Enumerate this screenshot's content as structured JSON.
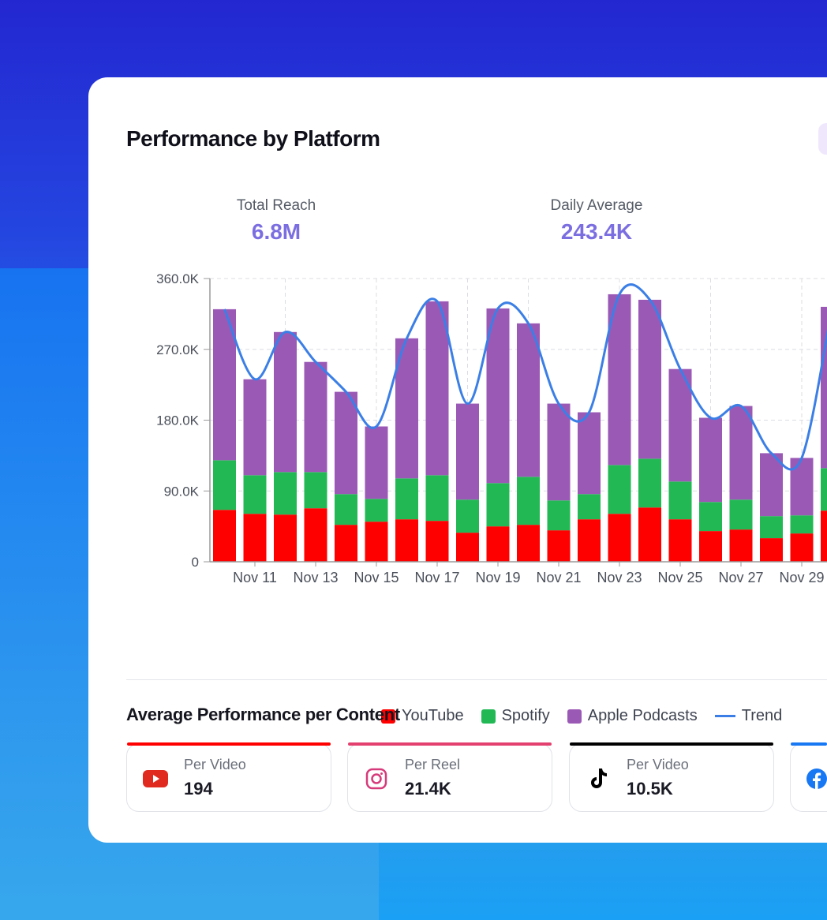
{
  "header": {
    "title": "Performance by Platform"
  },
  "stats": [
    {
      "label": "Total Reach",
      "value": "6.8M"
    },
    {
      "label": "Daily Average",
      "value": "243.4K"
    }
  ],
  "colors": {
    "youtube": "#ff0000",
    "spotify": "#22b955",
    "apple": "#9b59b6",
    "trend": "#3b7fe6",
    "accent": "#7b6ee0"
  },
  "chart_data": {
    "type": "bar",
    "stacked": true,
    "categories": [
      "Nov 10",
      "Nov 11",
      "Nov 12",
      "Nov 13",
      "Nov 14",
      "Nov 15",
      "Nov 16",
      "Nov 17",
      "Nov 18",
      "Nov 19",
      "Nov 20",
      "Nov 21",
      "Nov 22",
      "Nov 23",
      "Nov 24",
      "Nov 25",
      "Nov 26",
      "Nov 27",
      "Nov 28",
      "Nov 29",
      "Nov 30"
    ],
    "x_tick_labels": [
      "Nov 11",
      "Nov 13",
      "Nov 15",
      "Nov 17",
      "Nov 19",
      "Nov 21",
      "Nov 23",
      "Nov 25",
      "Nov 27",
      "Nov 29"
    ],
    "y_tick_labels": [
      "0",
      "90.0K",
      "180.0K",
      "270.0K",
      "360.0K"
    ],
    "ylim": [
      0,
      360000
    ],
    "grid": true,
    "legend": "bottom-right",
    "series": [
      {
        "name": "YouTube",
        "type": "bar",
        "values": [
          66000,
          61000,
          60000,
          68000,
          47000,
          51000,
          54000,
          52000,
          37000,
          45000,
          47000,
          40000,
          54000,
          61000,
          69000,
          54000,
          39000,
          41000,
          30000,
          36000,
          65000
        ]
      },
      {
        "name": "Spotify",
        "type": "bar",
        "values": [
          63000,
          49000,
          54000,
          46000,
          39000,
          29000,
          52000,
          58000,
          42000,
          55000,
          61000,
          38000,
          32000,
          62000,
          62000,
          48000,
          37000,
          38000,
          28000,
          23000,
          54000
        ]
      },
      {
        "name": "Apple Podcasts",
        "type": "bar",
        "values": [
          192000,
          122000,
          178000,
          140000,
          130000,
          92000,
          178000,
          221000,
          122000,
          222000,
          195000,
          123000,
          104000,
          217000,
          202000,
          143000,
          107000,
          119000,
          80000,
          73000,
          205000
        ]
      },
      {
        "name": "Trend",
        "type": "line",
        "values": [
          321000,
          232000,
          292000,
          254000,
          216000,
          172000,
          284000,
          331000,
          201000,
          322000,
          303000,
          201000,
          190000,
          340000,
          333000,
          245000,
          183000,
          198000,
          138000,
          132000,
          324000
        ]
      }
    ]
  },
  "section": {
    "title": "Average Performance per Content"
  },
  "platform_cards": [
    {
      "icon": "youtube-icon",
      "label": "Per Video",
      "value": "194",
      "color": "#ff0000"
    },
    {
      "icon": "instagram-icon",
      "label": "Per Reel",
      "value": "21.4K",
      "color": "#e4406f"
    },
    {
      "icon": "tiktok-icon",
      "label": "Per Video",
      "value": "10.5K",
      "color": "#000000"
    },
    {
      "icon": "facebook-icon",
      "label": "",
      "value": "",
      "color": "#1877f2"
    }
  ]
}
